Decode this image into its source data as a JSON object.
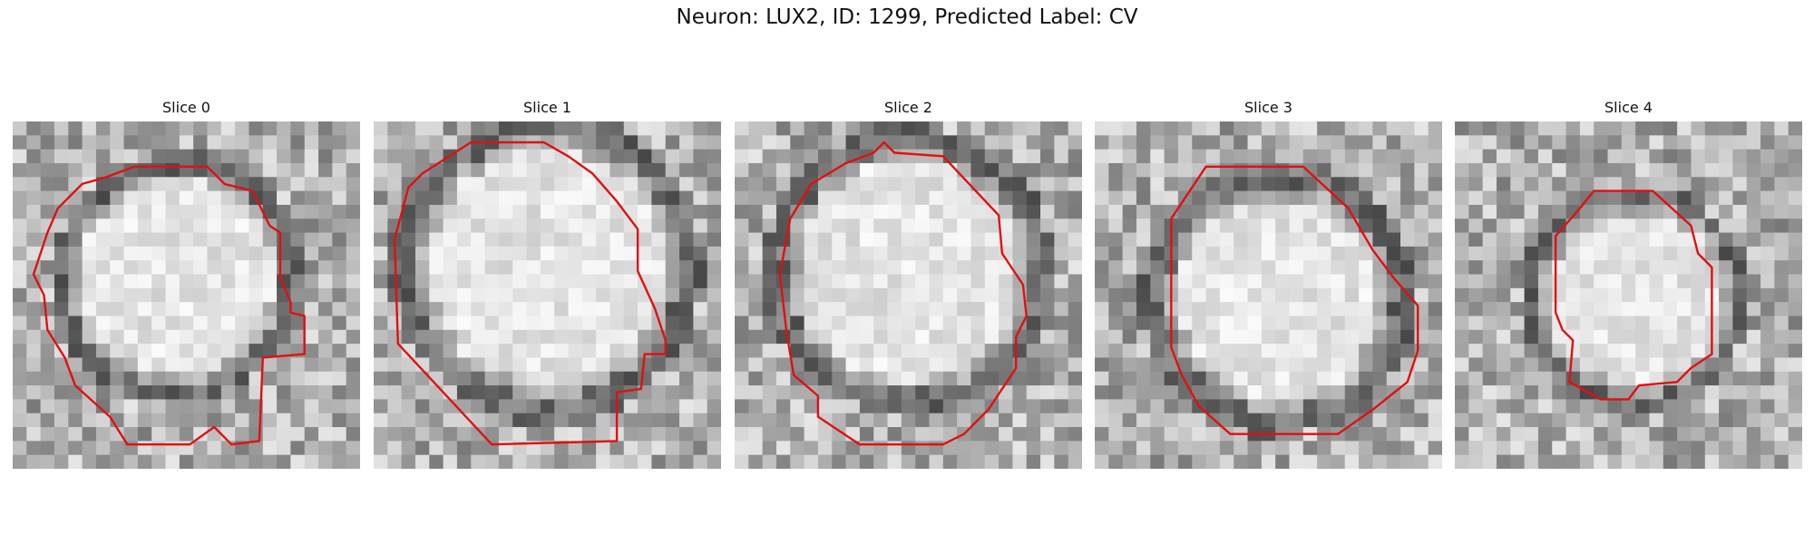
{
  "figure": {
    "title": "Neuron: LUX2, ID: 1299, Predicted Label: CV"
  },
  "panels": [
    {
      "title": "Slice 0"
    },
    {
      "title": "Slice 1"
    },
    {
      "title": "Slice 2"
    },
    {
      "title": "Slice 3"
    },
    {
      "title": "Slice 4"
    }
  ],
  "colors": {
    "contour": "#e01010",
    "background": "#ffffff"
  }
}
